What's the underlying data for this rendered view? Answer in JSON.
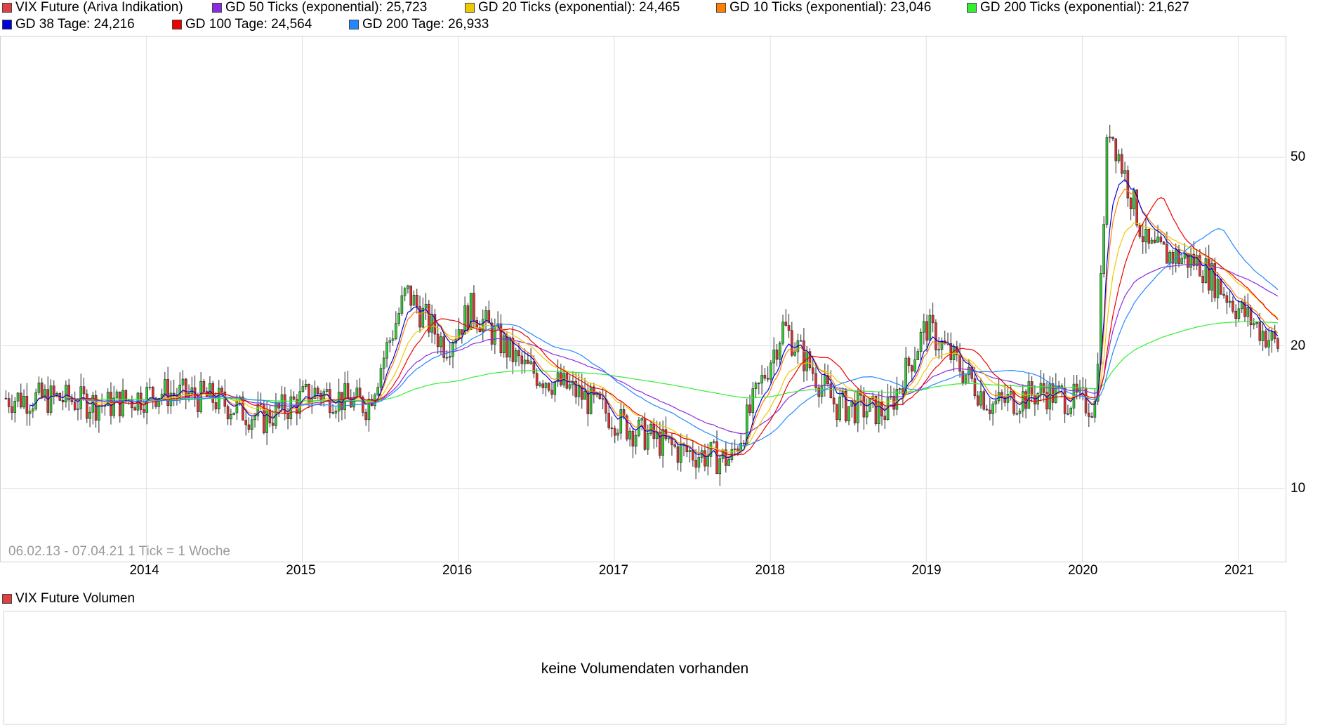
{
  "legend": {
    "row1": [
      {
        "label": "VIX Future (Ariva Indikation)",
        "color": "#e04040"
      },
      {
        "label": "GD 50 Ticks (exponential): 25,723",
        "color": "#8a2be2"
      },
      {
        "label": "GD 20 Ticks (exponential): 24,465",
        "color": "#f0c800"
      },
      {
        "label": "GD 10 Ticks (exponential): 23,046",
        "color": "#ff8000"
      },
      {
        "label": "GD 200 Ticks (exponential): 21,627",
        "color": "#33ee33"
      }
    ],
    "row2": [
      {
        "label": "GD 38 Tage: 24,216",
        "color": "#0000dd"
      },
      {
        "label": "GD 100 Tage: 24,564",
        "color": "#ee0000"
      },
      {
        "label": "GD 200 Tage: 26,933",
        "color": "#2288ff"
      }
    ]
  },
  "footer": {
    "range": "06.02.13 - 07.04.21   1 Tick = 1 Woche"
  },
  "volume": {
    "title": "VIX Future Volumen",
    "title_color": "#e04040",
    "message": "keine Volumendaten vorhanden"
  },
  "chart_data": {
    "type": "candlestick",
    "x_ticks": [
      "2014",
      "2015",
      "2016",
      "2017",
      "2018",
      "2019",
      "2020",
      "2021"
    ],
    "y_ticks": [
      10,
      20,
      50
    ],
    "y_scale": "log",
    "ylim": [
      7,
      90
    ],
    "grid": true,
    "series": [
      {
        "name": "VIX Future (Ariva Indikation)",
        "kind": "candlestick",
        "x": [
          "2013-06",
          "2013-10",
          "2014-02",
          "2014-06",
          "2014-10",
          "2015-02",
          "2015-06",
          "2015-09",
          "2015-12",
          "2016-02",
          "2016-06",
          "2016-10",
          "2017-02",
          "2017-06",
          "2017-10",
          "2018-02",
          "2018-06",
          "2018-10",
          "2019-01",
          "2019-06",
          "2019-10",
          "2020-02",
          "2020-03",
          "2020-06",
          "2020-10",
          "2021-01",
          "2021-04"
        ],
        "close": [
          15.5,
          15,
          16,
          15.5,
          14,
          16,
          15,
          26,
          20,
          24,
          18,
          16,
          13.5,
          12,
          11.5,
          22,
          15,
          14.5,
          22,
          15,
          16,
          15,
          60,
          32,
          30,
          24,
          20
        ]
      },
      {
        "name": "GD 50 Ticks (exponential): 25,723",
        "last": 25.723
      },
      {
        "name": "GD 20 Ticks (exponential): 24,465",
        "last": 24.465
      },
      {
        "name": "GD 10 Ticks (exponential): 23,046",
        "last": 23.046
      },
      {
        "name": "GD 200 Ticks (exponential): 21,627",
        "last": 21.627
      },
      {
        "name": "GD 38 Tage: 24,216",
        "last": 24.216
      },
      {
        "name": "GD 100 Tage: 24,564",
        "last": 24.564
      },
      {
        "name": "GD 200 Tage: 26,933",
        "last": 26.933
      }
    ]
  }
}
